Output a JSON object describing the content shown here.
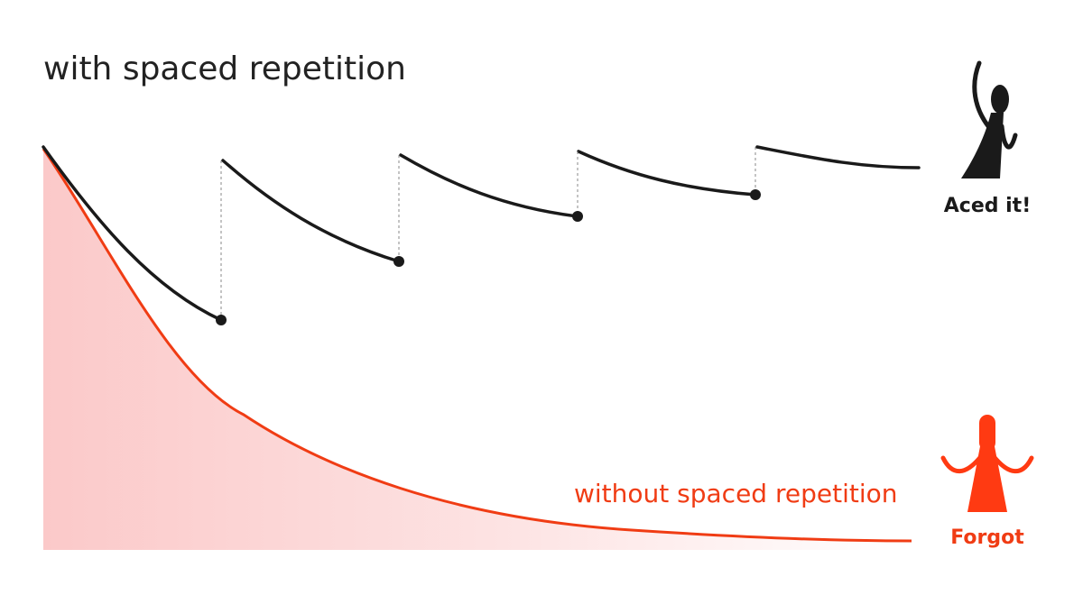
{
  "title": "with spaced repetition",
  "curve_label": "without spaced repetition",
  "figures": [
    {
      "label": "Aced it!"
    },
    {
      "label": "Forgot"
    }
  ]
}
